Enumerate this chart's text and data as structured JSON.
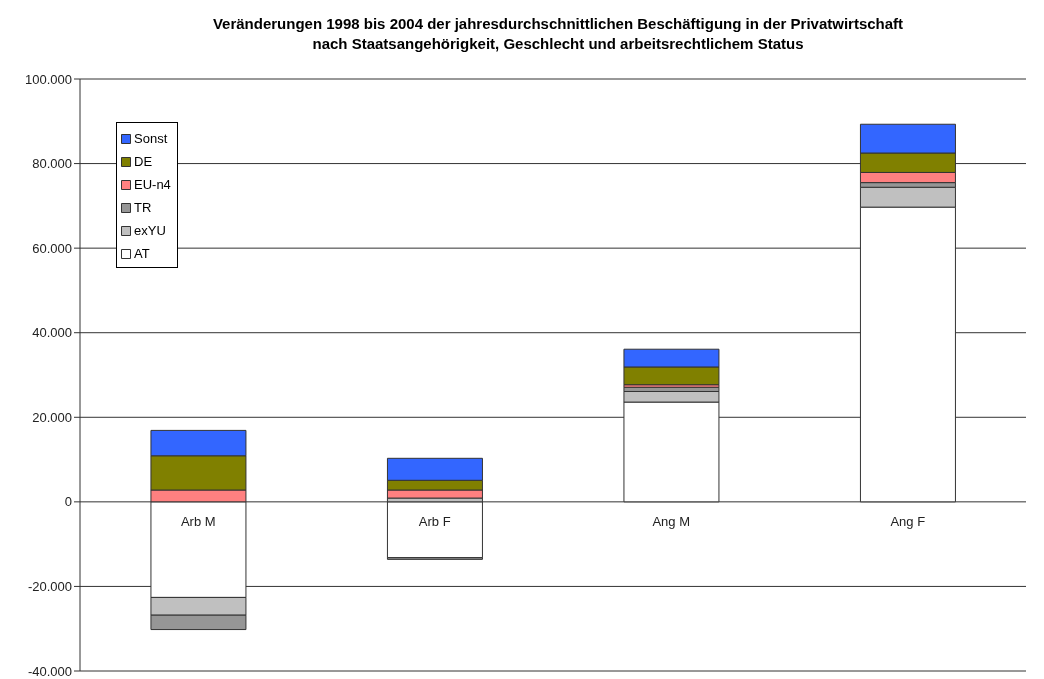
{
  "chart_data": {
    "type": "bar",
    "title": "Veränderungen 1998 bis 2004 der jahresdurchschnittlichen Beschäftigung in der Privatwirtschaft\nnach Staatsangehörigkeit, Geschlecht und arbeitsrechtlichem Status",
    "categories": [
      "Arb M",
      "Arb F",
      "Ang M",
      "Ang F"
    ],
    "stacked": true,
    "series": [
      {
        "name": "AT",
        "color": "#ffffff",
        "values": [
          -22600,
          -13200,
          23600,
          69700
        ]
      },
      {
        "name": "exYU",
        "color": "#c0c0c0",
        "values": [
          -4200,
          900,
          2500,
          4700
        ]
      },
      {
        "name": "TR",
        "color": "#969696",
        "values": [
          -3400,
          -400,
          1000,
          1100
        ]
      },
      {
        "name": "EU-n4",
        "color": "#ff8080",
        "values": [
          2800,
          1900,
          600,
          2400
        ]
      },
      {
        "name": "DE",
        "color": "#808000",
        "values": [
          8100,
          2300,
          4200,
          4600
        ]
      },
      {
        "name": "Sonst",
        "color": "#3366ff",
        "values": [
          6000,
          5200,
          4200,
          6800
        ]
      }
    ],
    "ylim": [
      -40000,
      100000
    ],
    "yticks": [
      {
        "value": -40000,
        "label": "-40.000"
      },
      {
        "value": -20000,
        "label": "-20.000"
      },
      {
        "value": 0,
        "label": "0"
      },
      {
        "value": 20000,
        "label": "20.000"
      },
      {
        "value": 40000,
        "label": "40.000"
      },
      {
        "value": 60000,
        "label": "60.000"
      },
      {
        "value": 80000,
        "label": "80.000"
      },
      {
        "value": 100000,
        "label": "100.000"
      }
    ],
    "grid": "y",
    "legend": "top left"
  }
}
